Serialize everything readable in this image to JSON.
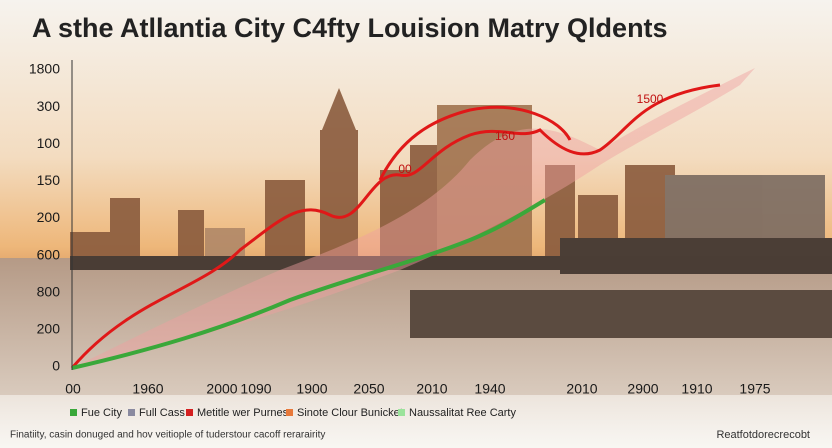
{
  "chart_data": {
    "type": "line",
    "title": "A sthe Atllantia City C4fty Louision Matry Qldents",
    "y_labels": [
      "1800",
      "300",
      "100",
      "150",
      "200",
      "600",
      "800",
      "200",
      "0"
    ],
    "categories": [
      "00",
      "1960",
      "2000",
      "1090",
      "1900",
      "2050",
      "2010",
      "1940",
      "2010",
      "2900",
      "1910",
      "1975"
    ],
    "annotations": [
      "1500",
      "160",
      "00"
    ],
    "legend": [
      {
        "name": "Fue City",
        "color": "#3aa83a"
      },
      {
        "name": "Full Cass",
        "color": "#8a8aa0"
      },
      {
        "name": "Metitle wer Purnes",
        "color": "#d42020"
      },
      {
        "name": "Sinote Clour Bunicket",
        "color": "#e8793a"
      },
      {
        "name": "Naussalitat Ree Carty",
        "color": "#9be39b"
      }
    ],
    "footnote": "Finatiity, casin donuged and hov veitiople of tuderstour cacoff rerarairity",
    "source": "Reatfotdorecrecobt"
  }
}
